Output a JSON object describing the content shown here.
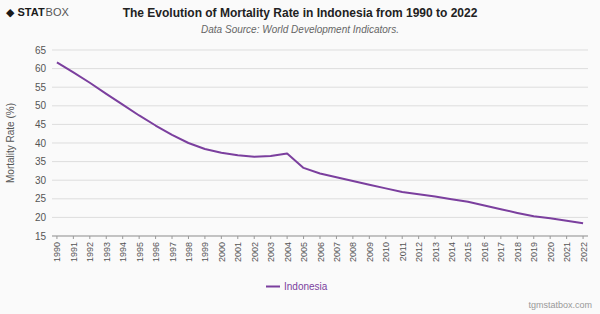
{
  "chart_data": {
    "type": "line",
    "title": "The Evolution of Mortality Rate in Indonesia from 1990 to 2022",
    "subtitle": "Data Source: World Development Indicators.",
    "y_label": "Mortality Rate (%)",
    "annotations": [
      "◆ STAT",
      "BOX",
      "tgmstatbox.com"
    ],
    "x": [
      1990,
      1991,
      1992,
      1993,
      1994,
      1995,
      1996,
      1997,
      1998,
      1999,
      2000,
      2001,
      2002,
      2003,
      2004,
      2005,
      2006,
      2007,
      2008,
      2009,
      2010,
      2011,
      2012,
      2013,
      2014,
      2015,
      2016,
      2017,
      2018,
      2019,
      2020,
      2021,
      2022
    ],
    "series": [
      {
        "name": "Indonesia",
        "color": "#7b3f9e",
        "values": [
          61.7,
          59.0,
          56.2,
          53.2,
          50.3,
          47.4,
          44.7,
          42.2,
          40.0,
          38.4,
          37.4,
          36.7,
          36.3,
          36.5,
          37.2,
          33.3,
          31.8,
          30.8,
          29.8,
          28.8,
          27.8,
          26.8,
          26.2,
          25.6,
          24.9,
          24.2,
          23.2,
          22.2,
          21.2,
          20.3,
          19.8,
          19.1,
          18.4
        ]
      }
    ],
    "xlim": [
      1989.7,
      2022.3
    ],
    "xticks": [
      1990,
      1991,
      1992,
      1993,
      1994,
      1995,
      1996,
      1997,
      1998,
      1999,
      2000,
      2001,
      2002,
      2003,
      2004,
      2005,
      2006,
      2007,
      2008,
      2009,
      2010,
      2011,
      2012,
      2013,
      2014,
      2015,
      2016,
      2017,
      2018,
      2019,
      2020,
      2021,
      2022
    ],
    "ylim": [
      15,
      65
    ],
    "yticks": [
      15,
      20,
      25,
      30,
      35,
      40,
      45,
      50,
      55,
      60,
      65
    ],
    "grid": true,
    "legend": "bottom"
  }
}
